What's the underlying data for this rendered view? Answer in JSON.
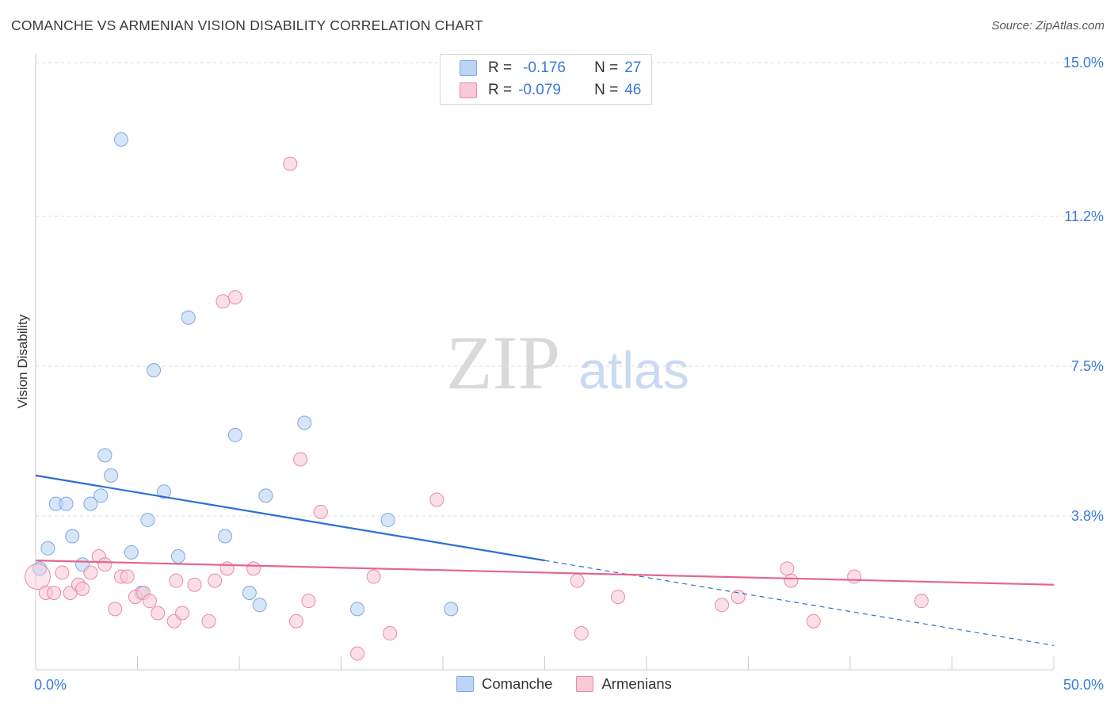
{
  "title": "COMANCHE VS ARMENIAN VISION DISABILITY CORRELATION CHART",
  "source": "Source: ZipAtlas.com",
  "watermark": {
    "zip": "ZIP",
    "atlas": "atlas"
  },
  "legend": {
    "rows": [
      {
        "r_label": "R =",
        "r_value": "-0.176",
        "n_label": "N =",
        "n_value": "27"
      },
      {
        "r_label": "R =",
        "r_value": "-0.079",
        "n_label": "N =",
        "n_value": "46"
      }
    ]
  },
  "colors": {
    "comanche_fill": "#bcd4f5",
    "comanche_stroke": "#7fa8e0",
    "comanche_line": "#2b6fd4",
    "armenian_fill": "#f8c9d6",
    "armenian_stroke": "#e98aa6",
    "armenian_line": "#e2678f",
    "accent_text": "#3a7bd5",
    "grid": "#dddddd"
  },
  "chart_data": {
    "type": "scatter",
    "title": "COMANCHE VS ARMENIAN VISION DISABILITY CORRELATION CHART",
    "xlabel": "",
    "ylabel": "Vision Disability",
    "xlim": [
      0,
      50
    ],
    "ylim": [
      0,
      15.0
    ],
    "x_tick_labels": [
      "0.0%",
      "50.0%"
    ],
    "y_ticks": [
      3.8,
      7.5,
      11.2,
      15.0
    ],
    "y_tick_labels": [
      "3.8%",
      "7.5%",
      "11.2%",
      "15.0%"
    ],
    "grid": "horizontal dashed",
    "series": [
      {
        "name": "Comanche",
        "points": [
          [
            0.2,
            2.5
          ],
          [
            0.6,
            3.0
          ],
          [
            1.0,
            4.1
          ],
          [
            1.5,
            4.1
          ],
          [
            1.8,
            3.3
          ],
          [
            2.3,
            2.6
          ],
          [
            2.7,
            4.1
          ],
          [
            3.2,
            4.3
          ],
          [
            3.4,
            5.3
          ],
          [
            3.7,
            4.8
          ],
          [
            4.2,
            13.1
          ],
          [
            4.7,
            2.9
          ],
          [
            5.2,
            1.9
          ],
          [
            5.5,
            3.7
          ],
          [
            5.8,
            7.4
          ],
          [
            6.3,
            4.4
          ],
          [
            7.0,
            2.8
          ],
          [
            7.5,
            8.7
          ],
          [
            9.3,
            3.3
          ],
          [
            9.8,
            5.8
          ],
          [
            10.5,
            1.9
          ],
          [
            11.0,
            1.6
          ],
          [
            11.3,
            4.3
          ],
          [
            13.2,
            6.1
          ],
          [
            15.8,
            1.5
          ],
          [
            17.3,
            3.7
          ],
          [
            20.4,
            1.5
          ]
        ],
        "trend": {
          "x": [
            0,
            25
          ],
          "y": [
            4.8,
            2.7
          ],
          "dashed_extension": {
            "x": [
              25,
              50
            ],
            "y": [
              2.7,
              0.6
            ]
          }
        }
      },
      {
        "name": "Armenians",
        "points": [
          [
            0.1,
            2.3
          ],
          [
            0.5,
            1.9
          ],
          [
            0.9,
            1.9
          ],
          [
            1.3,
            2.4
          ],
          [
            1.7,
            1.9
          ],
          [
            2.1,
            2.1
          ],
          [
            2.3,
            2.0
          ],
          [
            2.7,
            2.4
          ],
          [
            3.1,
            2.8
          ],
          [
            3.4,
            2.6
          ],
          [
            3.9,
            1.5
          ],
          [
            4.2,
            2.3
          ],
          [
            4.5,
            2.3
          ],
          [
            4.9,
            1.8
          ],
          [
            5.3,
            1.9
          ],
          [
            5.6,
            1.7
          ],
          [
            6.0,
            1.4
          ],
          [
            6.8,
            1.2
          ],
          [
            6.9,
            2.2
          ],
          [
            7.2,
            1.4
          ],
          [
            7.8,
            2.1
          ],
          [
            8.5,
            1.2
          ],
          [
            8.8,
            2.2
          ],
          [
            9.2,
            9.1
          ],
          [
            9.4,
            2.5
          ],
          [
            9.8,
            9.2
          ],
          [
            10.7,
            2.5
          ],
          [
            12.5,
            12.5
          ],
          [
            12.8,
            1.2
          ],
          [
            13.0,
            5.2
          ],
          [
            13.4,
            1.7
          ],
          [
            14.0,
            3.9
          ],
          [
            15.8,
            0.4
          ],
          [
            16.6,
            2.3
          ],
          [
            17.4,
            0.9
          ],
          [
            19.7,
            4.2
          ],
          [
            26.6,
            2.2
          ],
          [
            26.8,
            0.9
          ],
          [
            28.6,
            1.8
          ],
          [
            33.7,
            1.6
          ],
          [
            34.5,
            1.8
          ],
          [
            36.9,
            2.5
          ],
          [
            37.1,
            2.2
          ],
          [
            38.2,
            1.2
          ],
          [
            40.2,
            2.3
          ],
          [
            43.5,
            1.7
          ]
        ],
        "trend": {
          "x": [
            0,
            50
          ],
          "y": [
            2.7,
            2.1
          ]
        }
      }
    ]
  }
}
